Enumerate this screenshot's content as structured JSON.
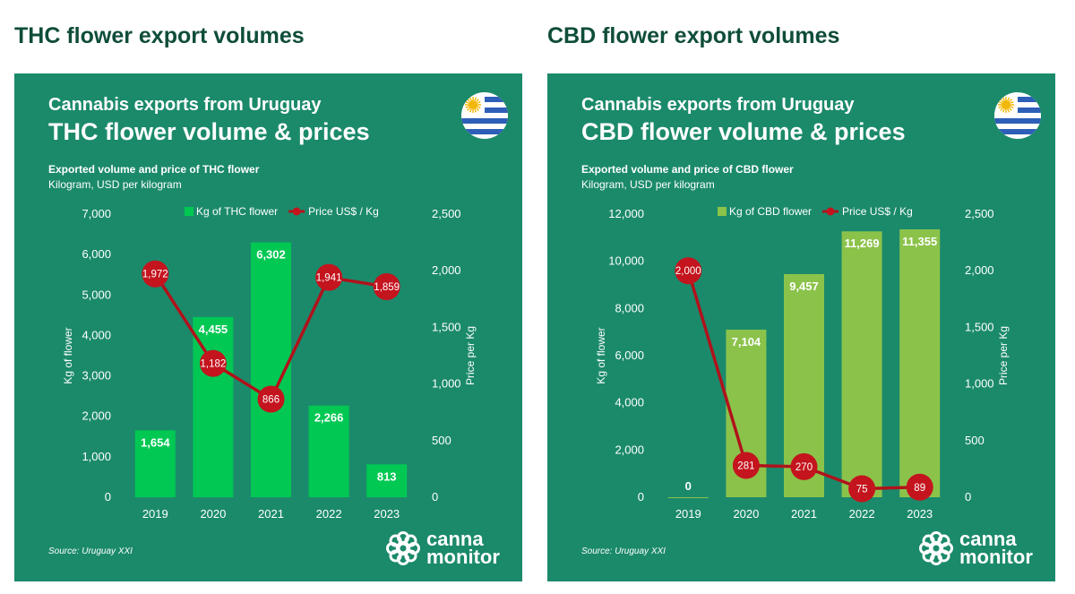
{
  "headings": [
    "THC flower export volumes",
    "CBD flower export volumes"
  ],
  "colors": {
    "panel_bg": "#1b8a6b",
    "heading": "#0f4d3a",
    "line": "#b0121b",
    "point_fill": "#c4141e"
  },
  "panels": [
    {
      "overline": "Cannabis exports from Uruguay",
      "title": "THC flower volume & prices",
      "description": "Exported volume and price of THC flower",
      "units": "Kilogram, USD per kilogram",
      "source": "Source: Uruguay XXI",
      "logo": {
        "icon": "cannamonitor-logo-icon",
        "line1": "canna",
        "line2": "monitor"
      },
      "flag_icon": "uruguay-flag-icon"
    },
    {
      "overline": "Cannabis exports from Uruguay",
      "title": "CBD flower volume & prices",
      "description": "Exported volume and price of CBD flower",
      "units": "Kilogram, USD per kilogram",
      "source": "Source: Uruguay XXI",
      "logo": {
        "icon": "cannamonitor-logo-icon",
        "line1": "canna",
        "line2": "monitor"
      },
      "flag_icon": "uruguay-flag-icon"
    }
  ],
  "chart_data": [
    {
      "type": "bar",
      "categories": [
        "2019",
        "2020",
        "2021",
        "2022",
        "2023"
      ],
      "series": [
        {
          "name": "Kg of THC flower",
          "type": "bar",
          "axis": "left",
          "color": "#00c853",
          "values": [
            1654,
            4455,
            6302,
            2266,
            813
          ],
          "labels": [
            "1,654",
            "4,455",
            "6,302",
            "2,266",
            "813"
          ]
        },
        {
          "name": "Price US$ / Kg",
          "type": "line",
          "axis": "right",
          "color": "#b0121b",
          "values": [
            1972,
            1182,
            866,
            1941,
            1859
          ],
          "labels": [
            "1,972",
            "1,182",
            "866",
            "1,941",
            "1,859"
          ]
        }
      ],
      "y_left": {
        "label": "Kg of flower",
        "ylim": [
          0,
          7000
        ],
        "ticks": [
          "0",
          "1,000",
          "2,000",
          "3,000",
          "4,000",
          "5,000",
          "6,000",
          "7,000"
        ]
      },
      "y_right": {
        "label": "Price per Kg",
        "ylim": [
          0,
          2500
        ],
        "ticks": [
          "0",
          "500",
          "1,000",
          "1,500",
          "2,000",
          "2,500"
        ]
      },
      "legend": "top-center",
      "grid": false
    },
    {
      "type": "bar",
      "categories": [
        "2019",
        "2020",
        "2021",
        "2022",
        "2023"
      ],
      "series": [
        {
          "name": "Kg of CBD flower",
          "type": "bar",
          "axis": "left",
          "color": "#8bc34a",
          "values": [
            0,
            7104,
            9457,
            11269,
            11355
          ],
          "labels": [
            "0",
            "7,104",
            "9,457",
            "11,269",
            "11,355"
          ]
        },
        {
          "name": "Price US$ / Kg",
          "type": "line",
          "axis": "right",
          "color": "#b0121b",
          "values": [
            2000,
            281,
            270,
            75,
            89
          ],
          "labels": [
            "2,000",
            "281",
            "270",
            "75",
            "89"
          ]
        }
      ],
      "y_left": {
        "label": "Kg of flower",
        "ylim": [
          0,
          12000
        ],
        "ticks": [
          "0",
          "2,000",
          "4,000",
          "6,000",
          "8,000",
          "10,000",
          "12,000"
        ]
      },
      "y_right": {
        "label": "Price per Kg",
        "ylim": [
          0,
          2500
        ],
        "ticks": [
          "0",
          "500",
          "1,000",
          "1,500",
          "2,000",
          "2,500"
        ]
      },
      "legend": "top-center",
      "grid": false
    }
  ]
}
